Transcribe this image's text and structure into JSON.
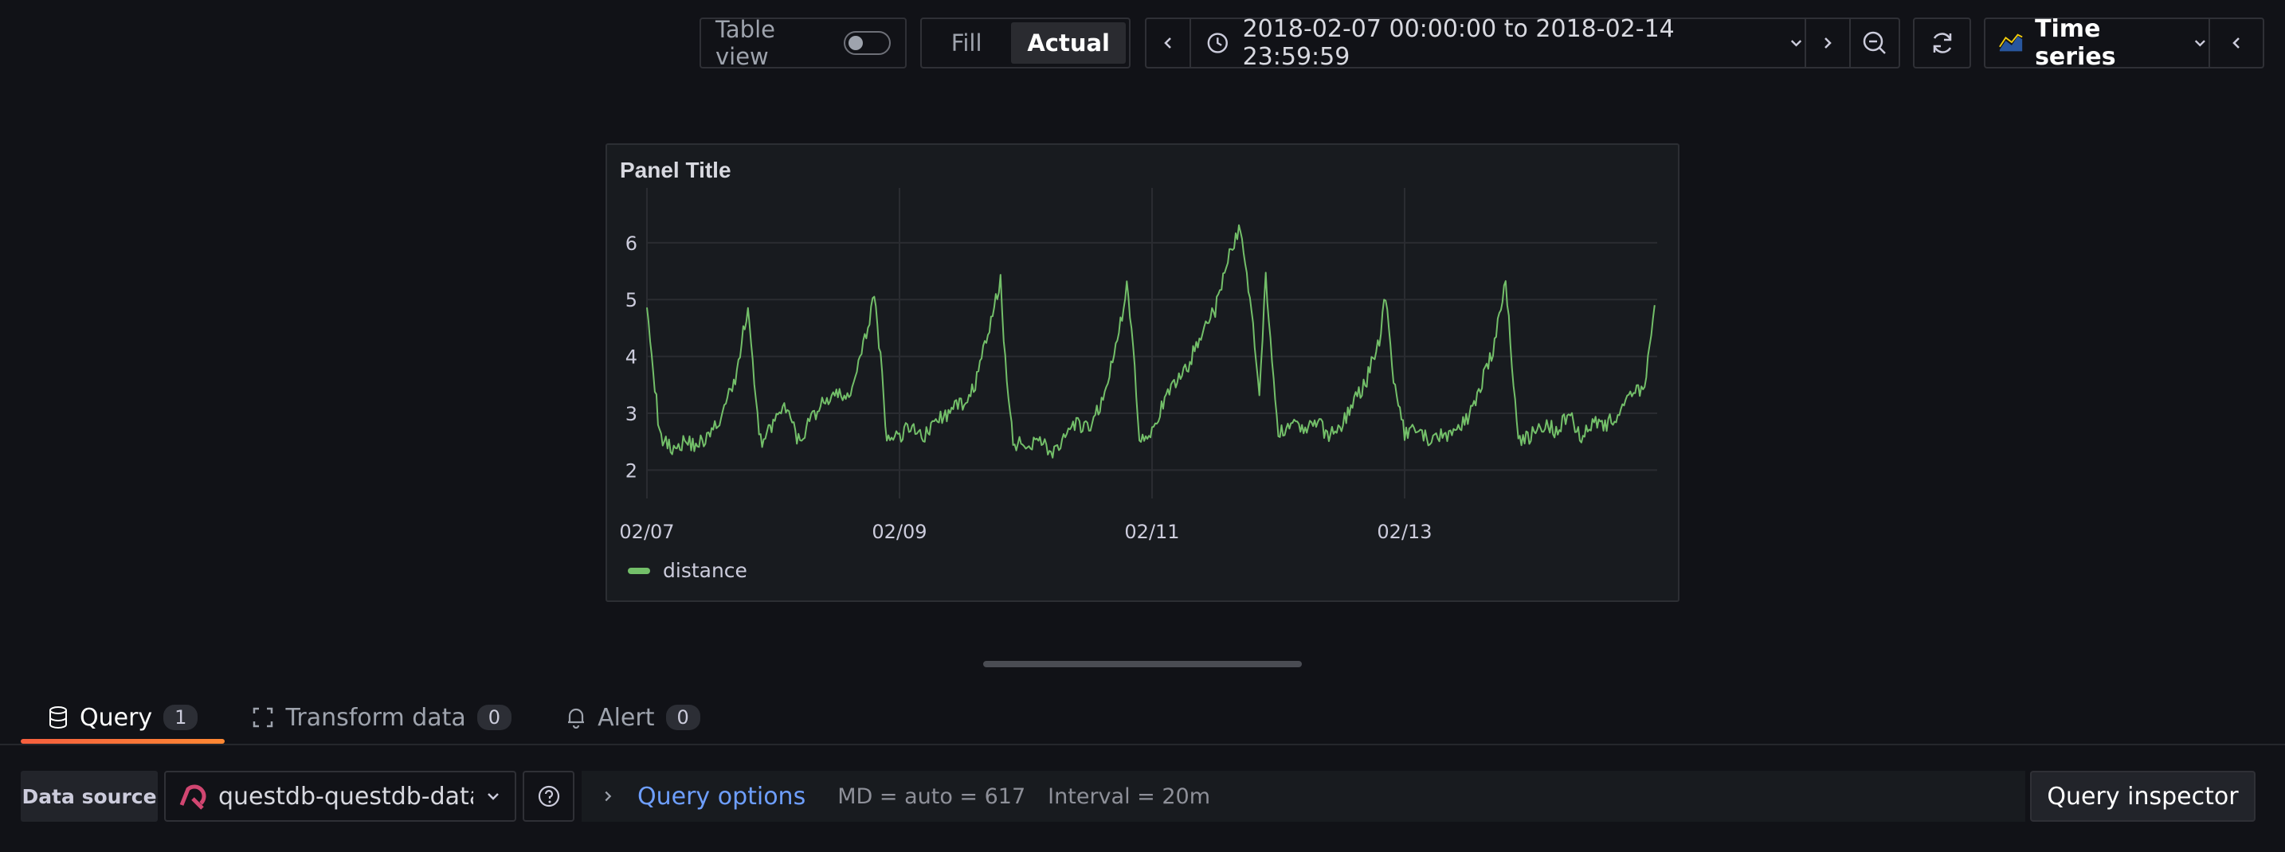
{
  "toolbar": {
    "table_view_label": "Table view",
    "fill_label": "Fill",
    "actual_label": "Actual",
    "time_range": "2018-02-07 00:00:00 to 2018-02-14 23:59:59",
    "visualization": "Time series"
  },
  "panel": {
    "title": "Panel Title"
  },
  "chart_data": {
    "type": "line",
    "title": "Panel Title",
    "x_ticks": [
      "02/07",
      "02/09",
      "02/11",
      "02/13"
    ],
    "y_ticks": [
      "2",
      "3",
      "4",
      "5",
      "6"
    ],
    "ylim": [
      2,
      6
    ],
    "xlim": [
      "2018-02-07",
      "2018-02-15"
    ],
    "grid": true,
    "legend_position": "bottom-left",
    "series": [
      {
        "name": "distance",
        "color": "#73bf69",
        "x_days": [
          0,
          0.1,
          0.2,
          0.3,
          0.4,
          0.5,
          0.6,
          0.7,
          0.8,
          0.85,
          0.9,
          1.0,
          1.1,
          1.2,
          1.3,
          1.4,
          1.5,
          1.6,
          1.7,
          1.8,
          1.85,
          1.9,
          2.0,
          2.1,
          2.2,
          2.3,
          2.4,
          2.5,
          2.6,
          2.7,
          2.8,
          2.85,
          2.9,
          3.0,
          3.1,
          3.2,
          3.3,
          3.4,
          3.5,
          3.6,
          3.7,
          3.8,
          3.85,
          3.9,
          4.0,
          4.1,
          4.2,
          4.3,
          4.4,
          4.5,
          4.6,
          4.7,
          4.8,
          4.85,
          4.9,
          4.95,
          5.0,
          5.1,
          5.2,
          5.3,
          5.4,
          5.5,
          5.6,
          5.7,
          5.8,
          5.85,
          5.9,
          6.0,
          6.1,
          6.2,
          6.3,
          6.4,
          6.5,
          6.6,
          6.7,
          6.8,
          6.85,
          6.9,
          7.0,
          7.1,
          7.2,
          7.3,
          7.4,
          7.5,
          7.6,
          7.7,
          7.8,
          7.9,
          7.98
        ],
        "values": [
          5.0,
          2.6,
          2.4,
          2.5,
          2.45,
          2.6,
          3.0,
          3.6,
          4.9,
          3.5,
          2.5,
          2.8,
          3.1,
          2.5,
          2.9,
          3.2,
          3.3,
          3.3,
          4.0,
          5.1,
          4.0,
          2.5,
          2.6,
          2.8,
          2.6,
          2.9,
          3.0,
          3.2,
          3.5,
          4.4,
          5.3,
          3.5,
          2.5,
          2.4,
          2.6,
          2.3,
          2.5,
          2.8,
          2.7,
          3.2,
          4.0,
          5.2,
          4.2,
          2.6,
          2.7,
          3.2,
          3.6,
          3.9,
          4.5,
          4.8,
          5.7,
          6.3,
          4.5,
          3.3,
          5.5,
          3.8,
          2.6,
          2.9,
          2.7,
          2.85,
          2.6,
          2.8,
          3.2,
          3.6,
          4.3,
          5.1,
          3.8,
          2.6,
          2.7,
          2.5,
          2.6,
          2.7,
          2.9,
          3.5,
          4.1,
          5.3,
          3.9,
          2.5,
          2.6,
          2.8,
          2.7,
          3.0,
          2.6,
          2.9,
          2.8,
          3.0,
          3.3,
          3.5,
          4.9
        ]
      }
    ]
  },
  "legend": {
    "series_name": "distance"
  },
  "tabs": [
    {
      "label": "Query",
      "count": "1"
    },
    {
      "label": "Transform data",
      "count": "0"
    },
    {
      "label": "Alert",
      "count": "0"
    }
  ],
  "query_row": {
    "data_source_label": "Data source",
    "data_source_value": "questdb-questdb-datasource",
    "query_options_label": "Query options",
    "md": "MD = auto = 617",
    "interval": "Interval = 20m",
    "inspector_label": "Query inspector"
  }
}
